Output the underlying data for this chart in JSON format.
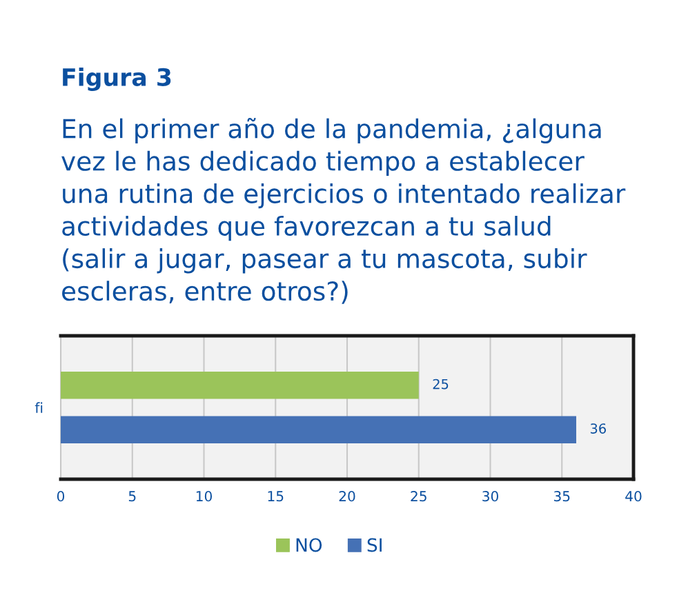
{
  "chart_data": {
    "type": "bar",
    "orientation": "horizontal",
    "title": "Figura 3",
    "subtitle": "En el primer año de la pandemia, ¿alguna\nvez le has dedicado tiempo a establecer\nuna rutina de ejercicios o intentado realizar\nactividades que favorezcan a tu salud\n(salir a jugar, pasear a tu mascota, subir\nescleras, entre otros?)",
    "categories": [
      "fi"
    ],
    "series": [
      {
        "name": "NO",
        "color": "#9bc45a",
        "values": [
          25
        ]
      },
      {
        "name": "SI",
        "color": "#4571b5",
        "values": [
          36
        ]
      }
    ],
    "xlim": [
      0,
      40
    ],
    "xticks": [
      0,
      5,
      10,
      15,
      20,
      25,
      30,
      35,
      40
    ],
    "grid": "x",
    "legend": "bottom",
    "data_labels": true
  }
}
